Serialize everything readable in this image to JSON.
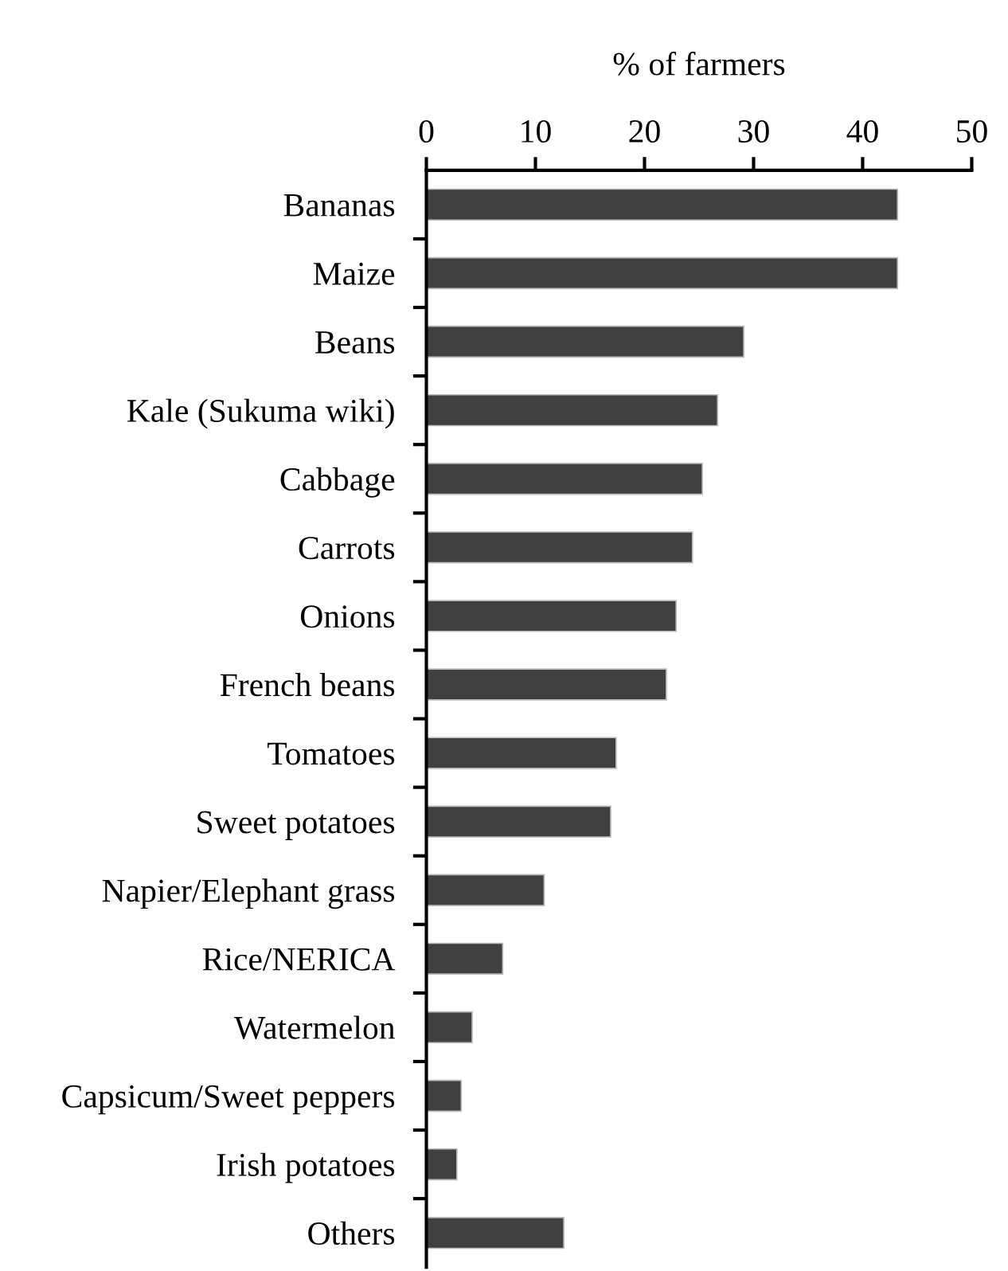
{
  "chart_data": {
    "type": "bar",
    "orientation": "horizontal",
    "xlabel": "% of farmers",
    "categories": [
      "Bananas",
      "Maize",
      "Beans",
      "Kale (Sukuma wiki)",
      "Cabbage",
      "Carrots",
      "Onions",
      "French beans",
      "Tomatoes",
      "Sweet potatoes",
      "Napier/Elephant grass",
      "Rice/NERICA",
      "Watermelon",
      "Capsicum/Sweet peppers",
      "Irish potatoes",
      "Others"
    ],
    "values": [
      43.2,
      43.2,
      29.1,
      26.7,
      25.3,
      24.4,
      22.9,
      22.0,
      17.4,
      16.9,
      10.8,
      7.0,
      4.2,
      3.2,
      2.8,
      12.6
    ],
    "color": "#404040",
    "xlim": [
      0,
      50
    ],
    "xticks": [
      0,
      10,
      20,
      30,
      40,
      50
    ],
    "grid": false,
    "legend": false
  }
}
